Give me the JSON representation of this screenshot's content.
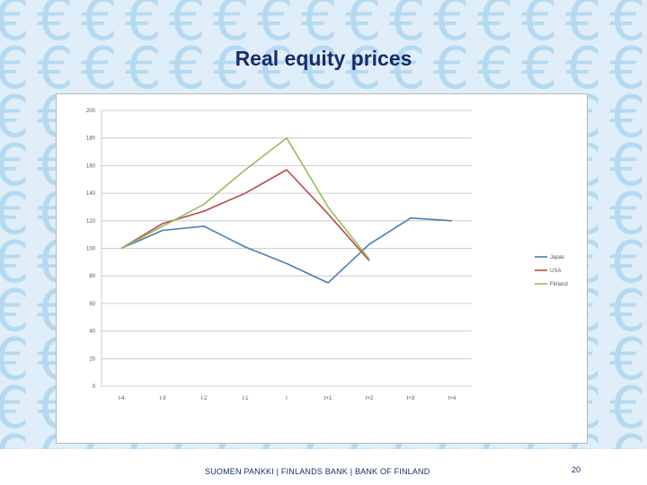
{
  "slide": {
    "title": "Real equity prices",
    "footer": "SUOMEN PANKKI | FINLANDS BANK | BANK OF FINLAND",
    "page_number": "20"
  },
  "colors": {
    "background": "#dfeef8",
    "euro_pattern": "#a9d3f0",
    "title": "#1a2b6b"
  },
  "chart_data": {
    "type": "line",
    "title": "",
    "xlabel": "",
    "ylabel": "",
    "categories": [
      "t-4",
      "t-3",
      "t-2",
      "t-1",
      "t",
      "t+1",
      "t+2",
      "t+3",
      "t+4"
    ],
    "y_ticks": [
      "200",
      "180",
      "160",
      "140",
      "120",
      "100",
      "80",
      "60",
      "40",
      "20",
      "0"
    ],
    "ylim": [
      0,
      200
    ],
    "grid": true,
    "legend_position": "right",
    "series": [
      {
        "name": "Japan",
        "color": "#4a7eb5",
        "values": [
          100,
          113,
          116,
          101,
          89,
          75,
          103,
          122,
          120
        ]
      },
      {
        "name": "USA",
        "color": "#b94a48",
        "values": [
          100,
          118,
          127,
          140,
          157,
          125,
          91,
          null,
          null
        ]
      },
      {
        "name": "Finland",
        "color": "#9bbb59",
        "values": [
          100,
          116,
          132,
          157,
          180,
          130,
          92,
          null,
          null
        ]
      }
    ]
  }
}
